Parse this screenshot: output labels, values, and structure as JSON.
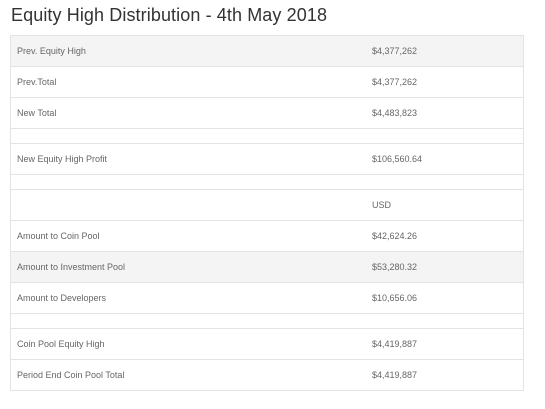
{
  "title": "Equity High Distribution - 4th May 2018",
  "rows": [
    {
      "label": "Prev. Equity High",
      "value": "$4,377,262"
    },
    {
      "label": "Prev.Total",
      "value": "$4,377,262"
    },
    {
      "label": "New Total",
      "value": "$4,483,823"
    },
    {
      "label": "",
      "value": ""
    },
    {
      "label": "New Equity High Profit",
      "value": "$106,560.64"
    },
    {
      "label": "",
      "value": ""
    },
    {
      "label": "",
      "value": "USD"
    },
    {
      "label": "Amount to Coin Pool",
      "value": "$42,624.26"
    },
    {
      "label": "Amount to Investment Pool",
      "value": "$53,280.32"
    },
    {
      "label": "Amount to Developers",
      "value": "$10,656.06"
    },
    {
      "label": "",
      "value": ""
    },
    {
      "label": "Coin Pool Equity High",
      "value": "$4,419,887"
    },
    {
      "label": "Period End Coin Pool Total",
      "value": "$4,419,887"
    }
  ]
}
